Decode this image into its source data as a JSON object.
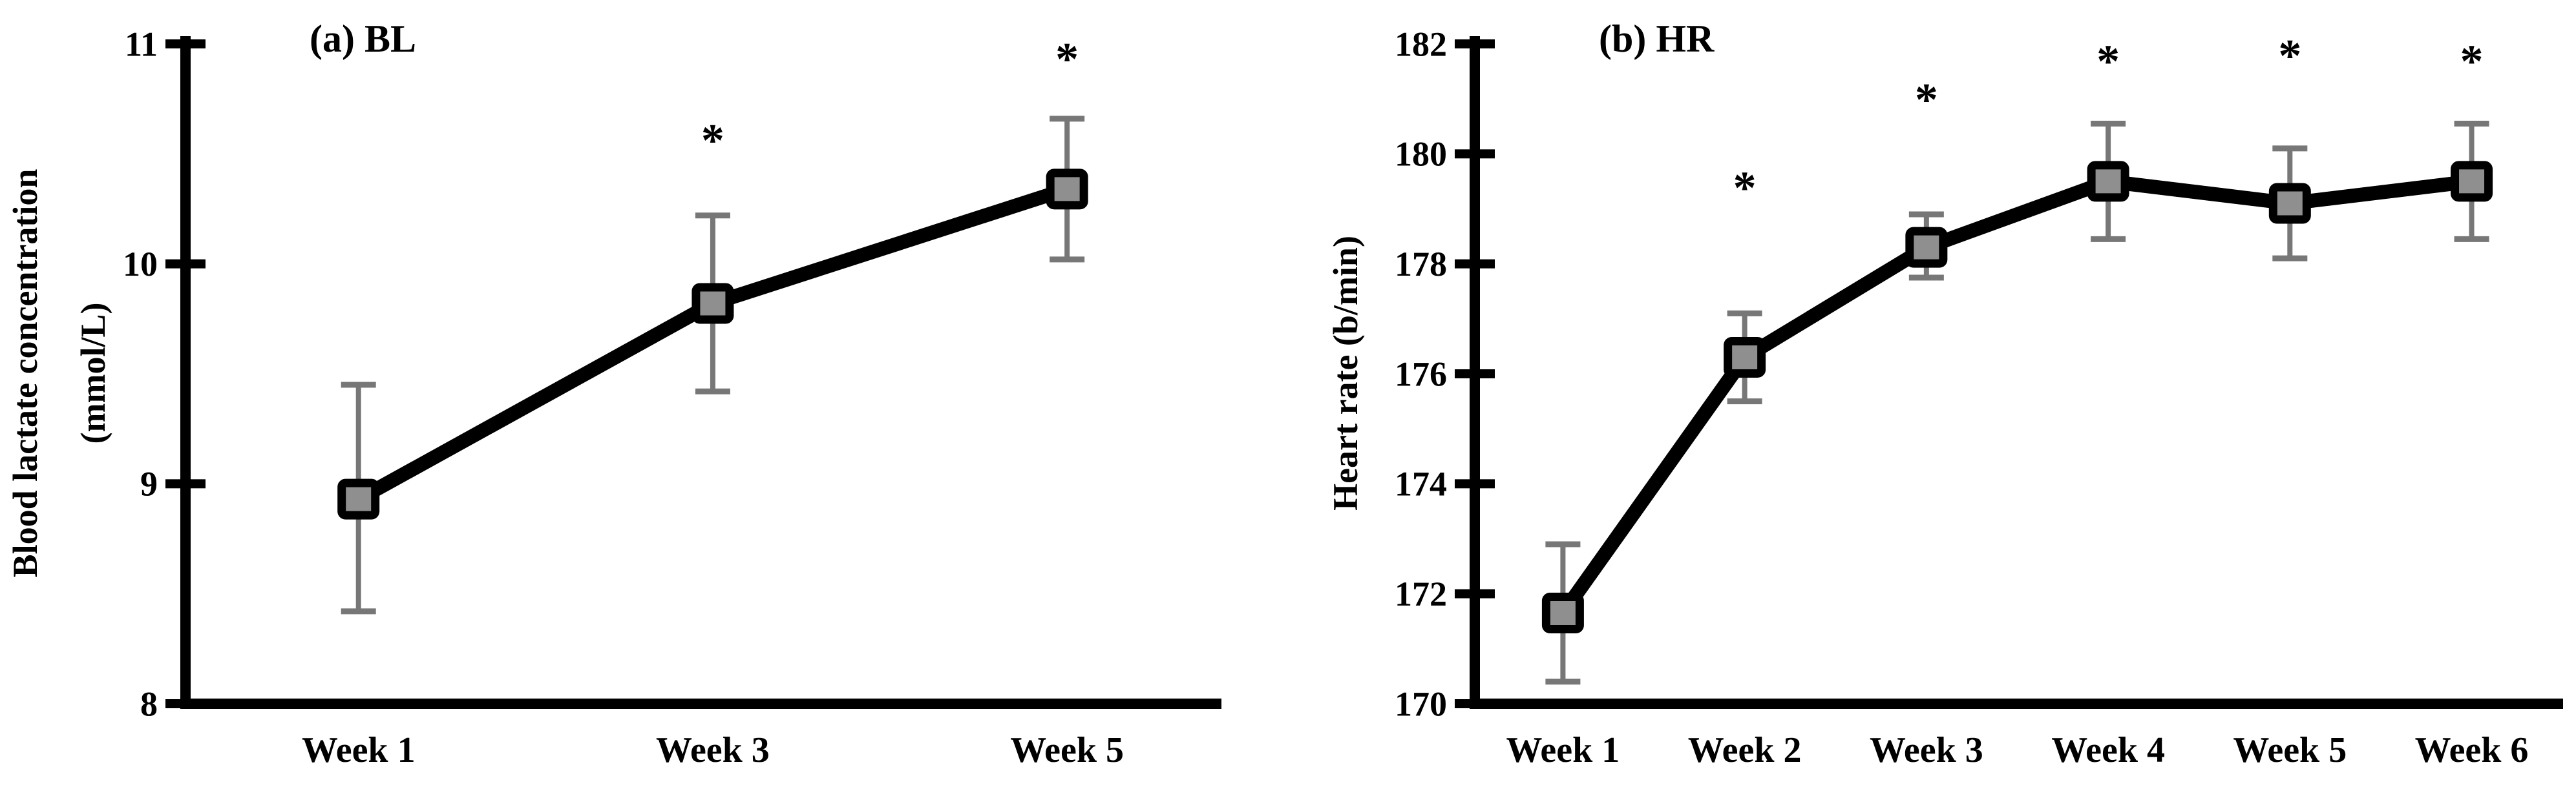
{
  "figure_background": "#ffffff",
  "style": {
    "axis_color": "#000000",
    "line_color": "#000000",
    "marker_fill": "#8f8f8f",
    "marker_stroke": "#000000",
    "error_bar_color": "#777777",
    "text_color": "#000000",
    "significance_symbol": "*"
  },
  "chart_data": [
    {
      "id": "bl",
      "type": "line",
      "title": "(a) BL",
      "ylabel_lines": [
        "Blood lactate concentration",
        "(mmol/L)"
      ],
      "xlabel": "",
      "categories": [
        "Week 1",
        "Week 3",
        "Week 5"
      ],
      "series": [
        {
          "name": "Blood lactate concentration (mmol/L)",
          "values": [
            8.93,
            9.82,
            10.34
          ]
        }
      ],
      "error_low": [
        8.42,
        9.42,
        10.02
      ],
      "error_high": [
        9.45,
        10.22,
        10.66
      ],
      "significance": [
        {
          "category_index": 1,
          "y": 10.59,
          "label": "*"
        },
        {
          "category_index": 2,
          "y": 10.96,
          "label": "*"
        }
      ],
      "ylim": [
        8,
        11
      ],
      "yticks": [
        8,
        9,
        10,
        11
      ],
      "grid": false,
      "legend": null
    },
    {
      "id": "hr",
      "type": "line",
      "title": "(b) HR",
      "ylabel_lines": [
        "Heart rate (b/min)"
      ],
      "xlabel": "",
      "categories": [
        "Week 1",
        "Week 2",
        "Week 3",
        "Week 4",
        "Week 5",
        "Week 6"
      ],
      "series": [
        {
          "name": "Heart rate (b/min)",
          "values": [
            171.65,
            176.3,
            178.3,
            179.5,
            179.1,
            179.5
          ]
        }
      ],
      "error_low": [
        170.4,
        175.5,
        177.75,
        178.45,
        178.1,
        178.45
      ],
      "error_high": [
        172.9,
        177.1,
        178.9,
        180.55,
        180.1,
        180.55
      ],
      "significance": [
        {
          "category_index": 1,
          "y": 179.5,
          "label": "*"
        },
        {
          "category_index": 2,
          "y": 181.1,
          "label": "*"
        },
        {
          "category_index": 3,
          "y": 181.8,
          "label": "*"
        },
        {
          "category_index": 4,
          "y": 181.9,
          "label": "*"
        },
        {
          "category_index": 5,
          "y": 181.8,
          "label": "*"
        }
      ],
      "ylim": [
        170,
        182
      ],
      "yticks": [
        170,
        172,
        174,
        176,
        178,
        180,
        182
      ],
      "grid": false,
      "legend": null
    }
  ]
}
